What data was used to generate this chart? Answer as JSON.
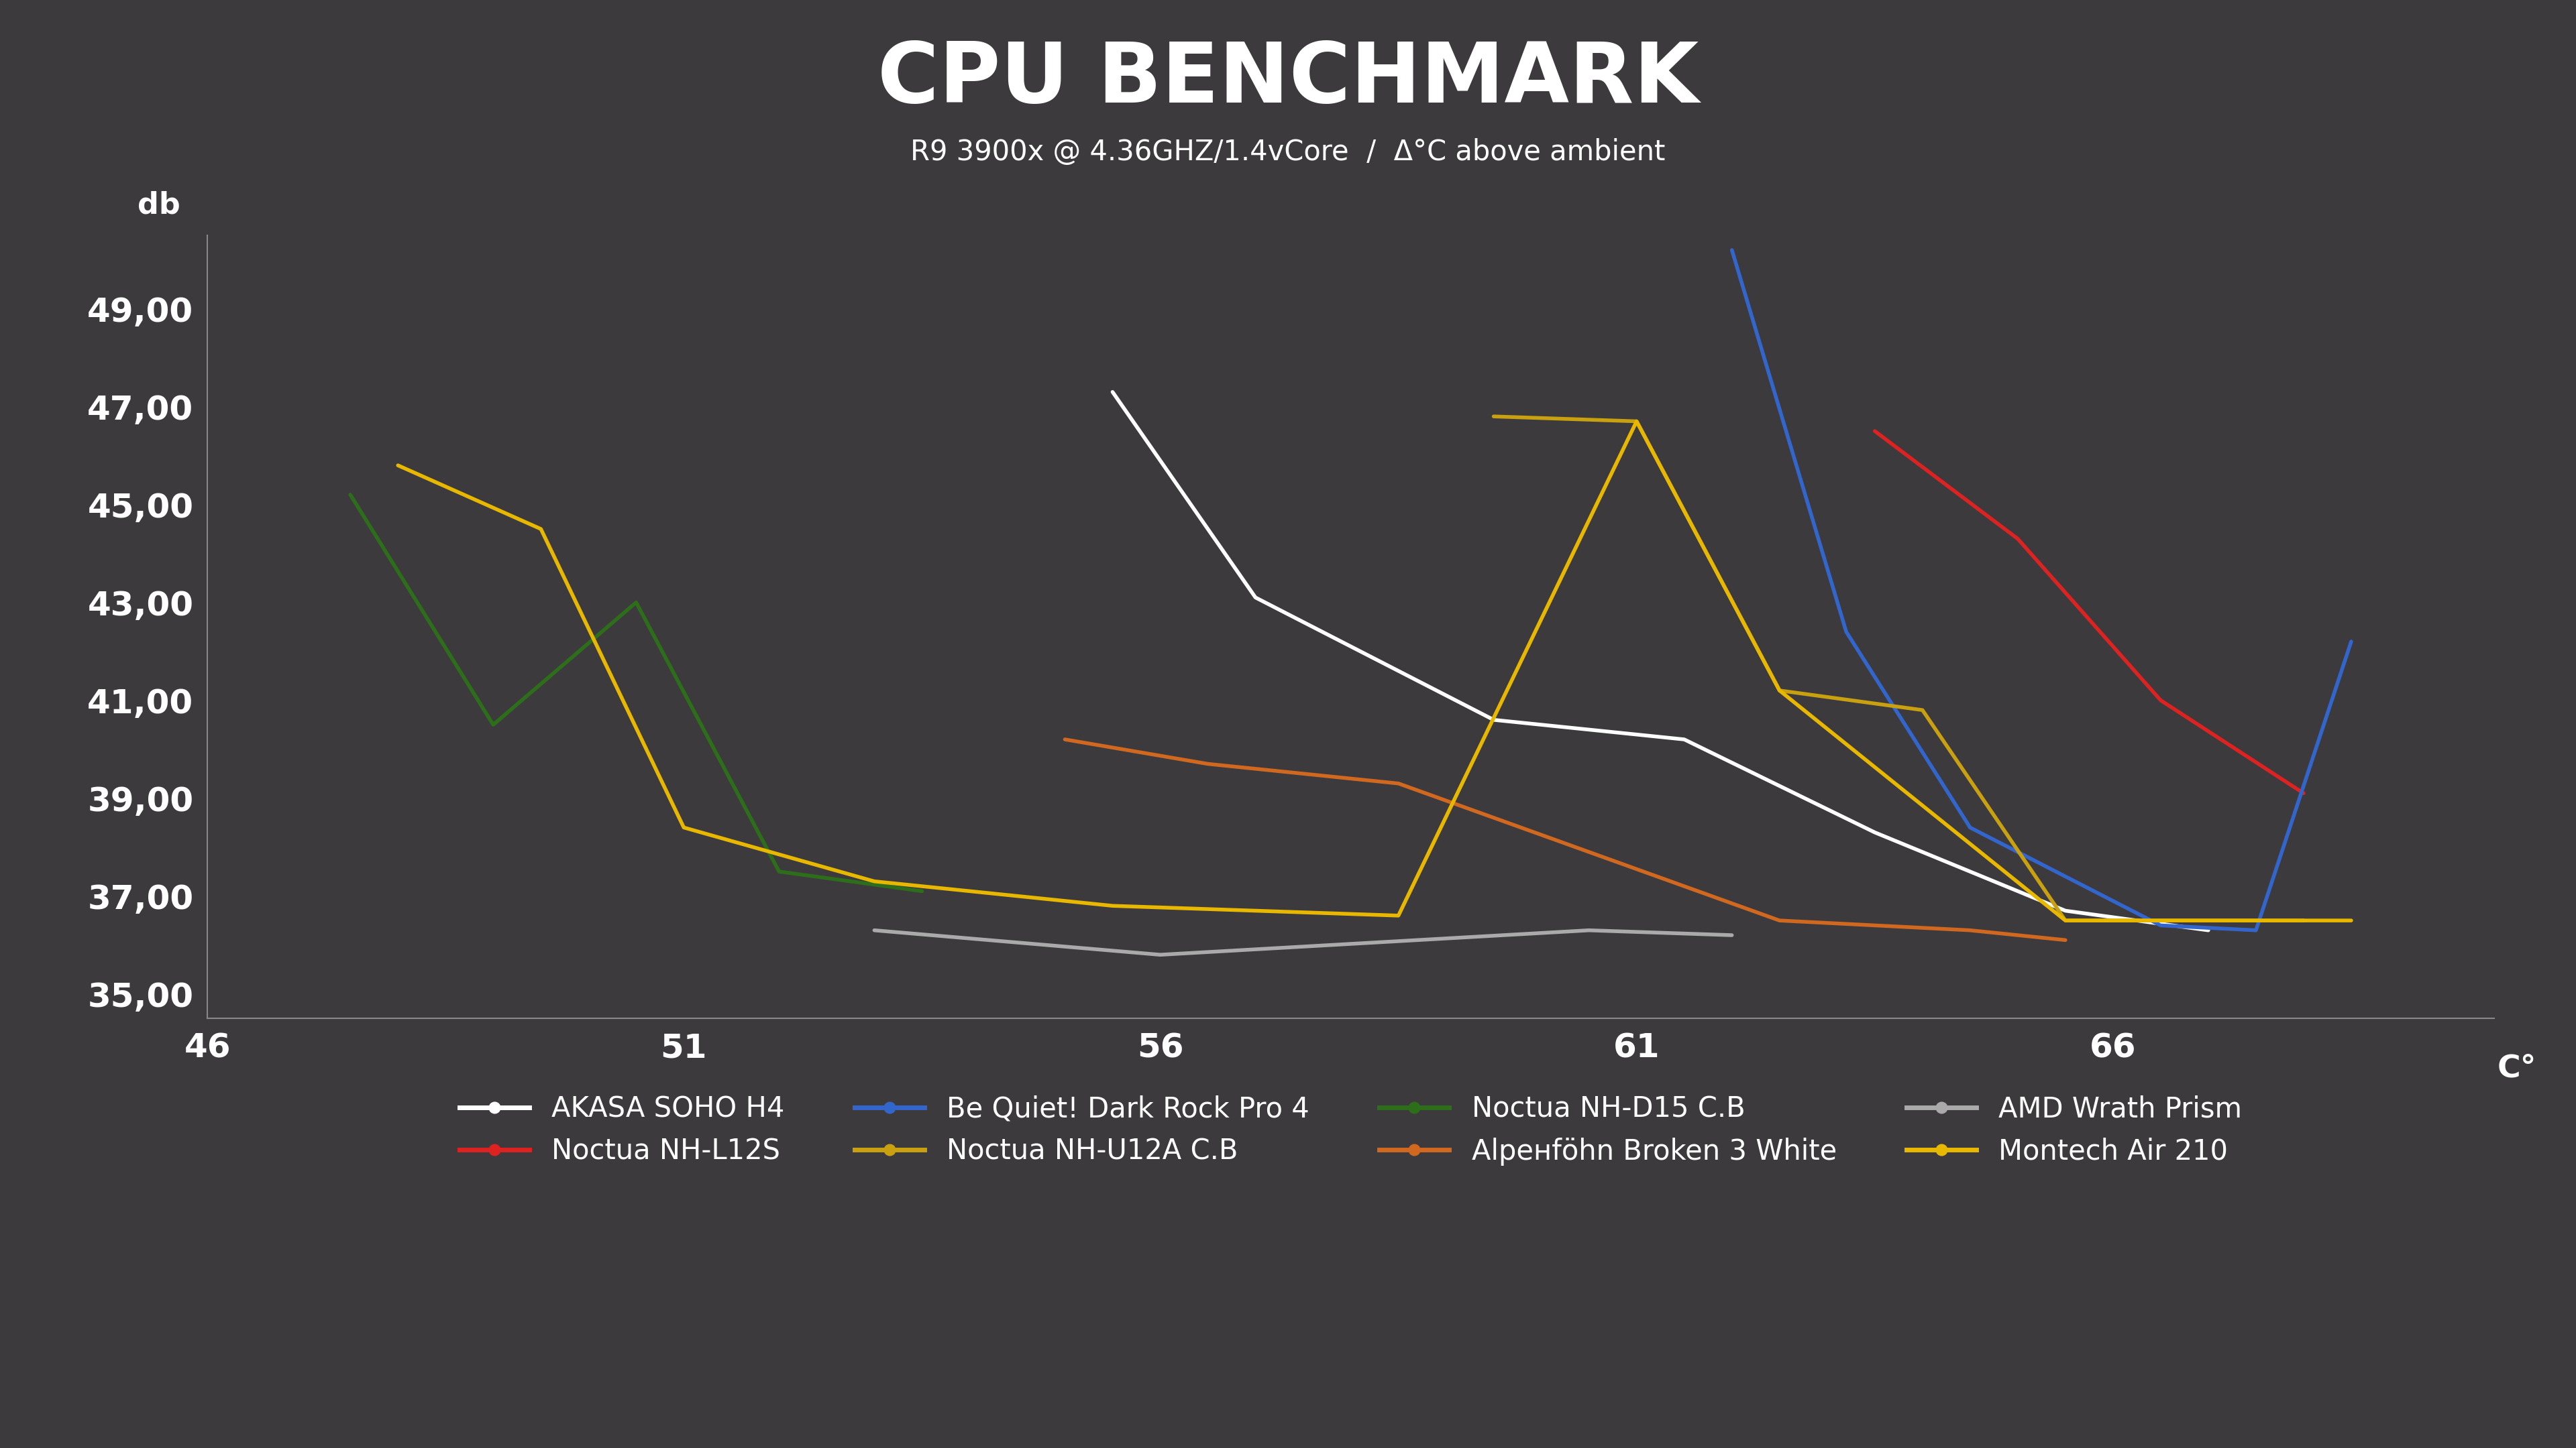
{
  "title": "CPU BENCHMARK",
  "subtitle": "R9 3900x @ 4.36GHZ/1.4vCore  /  Δ°C above ambient",
  "xlabel": "C°",
  "ylabel": "db",
  "bg_color": "#3d3a3d",
  "text_color": "#ffffff",
  "xlim": [
    46,
    70
  ],
  "ylim": [
    34.5,
    50.5
  ],
  "xticks": [
    46,
    51,
    56,
    61,
    66
  ],
  "yticks": [
    35.0,
    37.0,
    39.0,
    41.0,
    43.0,
    45.0,
    47.0,
    49.0
  ],
  "series": [
    {
      "label": "AKASA SOHO H4",
      "color": "#ffffff",
      "linewidth": 4,
      "x": [
        55.5,
        57.0,
        59.5,
        61.5,
        63.5,
        65.5,
        67.0
      ],
      "y": [
        47.3,
        43.1,
        40.6,
        40.2,
        38.3,
        36.7,
        36.3
      ]
    },
    {
      "label": "Noctua NH-L12S",
      "color": "#dd2222",
      "linewidth": 4,
      "x": [
        63.5,
        65.0,
        66.5,
        68.0
      ],
      "y": [
        46.5,
        44.3,
        41.0,
        39.1
      ]
    },
    {
      "label": "Be Quiet! Dark Rock Pro 4",
      "color": "#3366cc",
      "linewidth": 4,
      "x": [
        62.0,
        63.2,
        64.5,
        66.5,
        67.5,
        68.5
      ],
      "y": [
        50.2,
        42.4,
        38.4,
        36.4,
        36.3,
        42.2
      ]
    },
    {
      "label": "Noctua NH-U12A C.B",
      "color": "#c8a010",
      "linewidth": 4,
      "x": [
        59.5,
        61.0,
        62.5,
        64.0,
        65.5,
        67.0,
        68.0
      ],
      "y": [
        46.8,
        46.7,
        41.2,
        40.8,
        36.5,
        36.5,
        36.5
      ]
    },
    {
      "label": "Noctua NH-D15 C.B",
      "color": "#2d6e1a",
      "linewidth": 4,
      "x": [
        47.5,
        49.0,
        50.5,
        52.0,
        53.5
      ],
      "y": [
        45.2,
        40.5,
        43.0,
        37.5,
        37.1
      ]
    },
    {
      "label": "Alpенföhn Broken 3 White",
      "color": "#d06820",
      "linewidth": 4,
      "x": [
        55.0,
        56.5,
        58.5,
        62.5,
        64.5,
        65.5
      ],
      "y": [
        40.2,
        39.7,
        39.3,
        36.5,
        36.3,
        36.1
      ]
    },
    {
      "label": "AMD Wrath Prism",
      "color": "#aaaaaa",
      "linewidth": 4,
      "x": [
        53.0,
        56.0,
        60.5,
        62.0
      ],
      "y": [
        36.3,
        35.8,
        36.3,
        36.2
      ]
    },
    {
      "label": "Montech Air 210",
      "color": "#e8b800",
      "linewidth": 4,
      "x": [
        48.0,
        49.5,
        51.0,
        53.0,
        55.5,
        58.5,
        61.0,
        62.5,
        65.5,
        67.5,
        68.5
      ],
      "y": [
        45.8,
        44.5,
        38.4,
        37.3,
        36.8,
        36.6,
        46.7,
        41.2,
        36.5,
        36.5,
        36.5
      ]
    }
  ]
}
